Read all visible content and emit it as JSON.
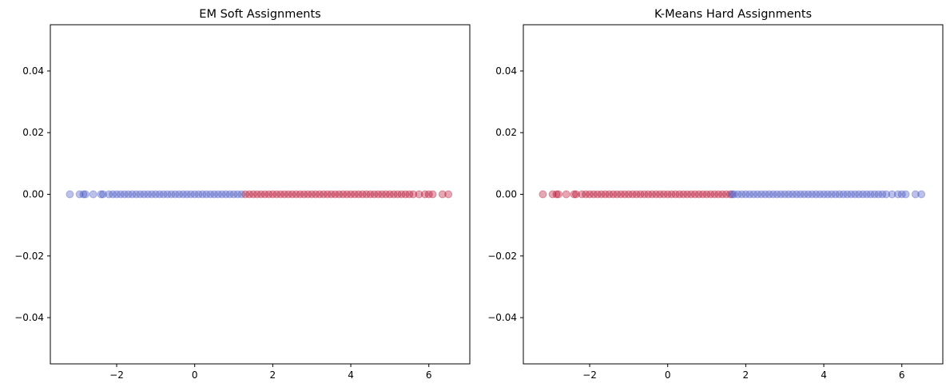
{
  "chart_data": [
    {
      "type": "scatter",
      "title": "EM Soft Assignments",
      "xlabel": "",
      "ylabel": "",
      "xlim": [
        -3.7,
        7.05
      ],
      "ylim": [
        -0.055,
        0.055
      ],
      "xticks": [
        -2,
        0,
        2,
        4,
        6
      ],
      "yticks": [
        -0.04,
        -0.02,
        0.0,
        0.02,
        0.04
      ],
      "xtick_labels": [
        "−2",
        "0",
        "2",
        "4",
        "6"
      ],
      "ytick_labels": [
        "−0.04",
        "−0.02",
        "0.00",
        "0.02",
        "0.04"
      ],
      "grid": false,
      "y_value_all_points": 0.0,
      "marker_alpha": 0.35,
      "series": [
        {
          "color": "#3b4cc0",
          "x": [
            -3.2,
            -2.95,
            -2.85,
            -2.8,
            -2.6,
            -2.4,
            -2.35,
            -2.2,
            -2.1,
            -2.0,
            -1.9,
            -1.8,
            -1.7,
            -1.6,
            -1.5,
            -1.4,
            -1.3,
            -1.2,
            -1.1,
            -1.0,
            -0.9,
            -0.8,
            -0.7,
            -0.6,
            -0.5,
            -0.4,
            -0.3,
            -0.2,
            -0.1,
            0.0,
            0.1,
            0.2,
            0.3,
            0.4,
            0.5,
            0.6,
            0.7,
            0.8,
            0.9,
            1.0,
            1.1,
            1.2
          ]
        },
        {
          "color": "#b40426",
          "x": [
            1.3,
            1.4,
            1.5,
            1.6,
            1.7,
            1.8,
            1.9,
            2.0,
            2.1,
            2.2,
            2.3,
            2.4,
            2.5,
            2.6,
            2.7,
            2.8,
            2.9,
            3.0,
            3.1,
            3.2,
            3.3,
            3.4,
            3.5,
            3.6,
            3.7,
            3.8,
            3.9,
            4.0,
            4.1,
            4.2,
            4.3,
            4.4,
            4.5,
            4.6,
            4.7,
            4.8,
            4.9,
            5.0,
            5.1,
            5.2,
            5.3,
            5.4,
            5.5,
            5.6,
            5.75,
            5.9,
            6.0,
            6.1,
            6.35,
            6.5
          ]
        }
      ]
    },
    {
      "type": "scatter",
      "title": "K-Means Hard Assignments",
      "xlabel": "",
      "ylabel": "",
      "xlim": [
        -3.7,
        7.05
      ],
      "ylim": [
        -0.055,
        0.055
      ],
      "xticks": [
        -2,
        0,
        2,
        4,
        6
      ],
      "yticks": [
        -0.04,
        -0.02,
        0.0,
        0.02,
        0.04
      ],
      "xtick_labels": [
        "−2",
        "0",
        "2",
        "4",
        "6"
      ],
      "ytick_labels": [
        "−0.04",
        "−0.02",
        "0.00",
        "0.02",
        "0.04"
      ],
      "grid": false,
      "y_value_all_points": 0.0,
      "marker_alpha": 0.35,
      "series": [
        {
          "color": "#b40426",
          "x": [
            -3.2,
            -2.95,
            -2.85,
            -2.8,
            -2.6,
            -2.4,
            -2.35,
            -2.2,
            -2.1,
            -2.0,
            -1.9,
            -1.8,
            -1.7,
            -1.6,
            -1.5,
            -1.4,
            -1.3,
            -1.2,
            -1.1,
            -1.0,
            -0.9,
            -0.8,
            -0.7,
            -0.6,
            -0.5,
            -0.4,
            -0.3,
            -0.2,
            -0.1,
            0.0,
            0.1,
            0.2,
            0.3,
            0.4,
            0.5,
            0.6,
            0.7,
            0.8,
            0.9,
            1.0,
            1.1,
            1.2,
            1.3,
            1.4,
            1.5,
            1.6
          ]
        },
        {
          "color": "#3b4cc0",
          "x": [
            1.65,
            1.7,
            1.8,
            1.9,
            2.0,
            2.1,
            2.2,
            2.3,
            2.4,
            2.5,
            2.6,
            2.7,
            2.8,
            2.9,
            3.0,
            3.1,
            3.2,
            3.3,
            3.4,
            3.5,
            3.6,
            3.7,
            3.8,
            3.9,
            4.0,
            4.1,
            4.2,
            4.3,
            4.4,
            4.5,
            4.6,
            4.7,
            4.8,
            4.9,
            5.0,
            5.1,
            5.2,
            5.3,
            5.4,
            5.5,
            5.6,
            5.75,
            5.9,
            6.0,
            6.1,
            6.35,
            6.5
          ]
        }
      ]
    }
  ]
}
